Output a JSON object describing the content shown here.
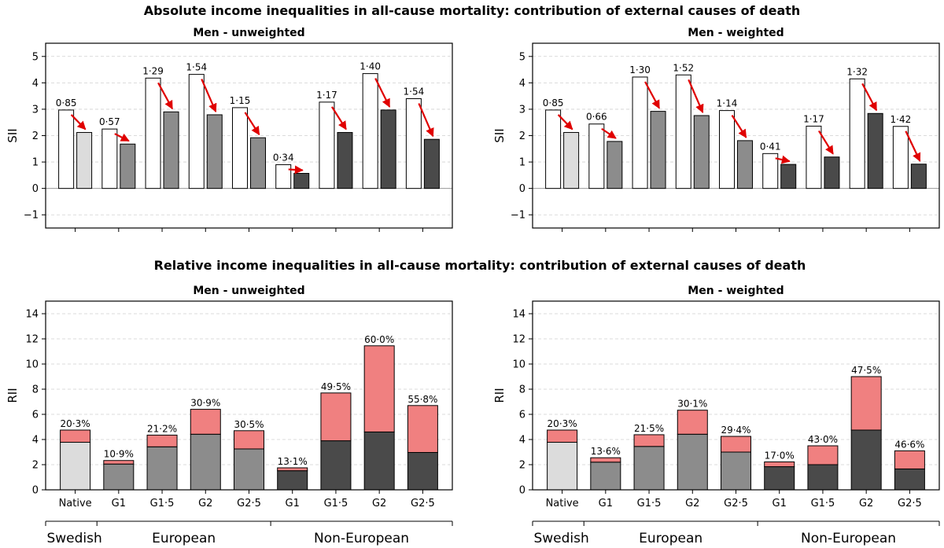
{
  "titles": {
    "top": "Absolute income inequalities in all-cause mortality: contribution of external causes of death",
    "bottom": "Relative income inequalities in all-cause mortality: contribution of external causes of death"
  },
  "categories": [
    "Native",
    "G1",
    "G1·5",
    "G2",
    "G2·5",
    "G1",
    "G1·5",
    "G2",
    "G2·5"
  ],
  "groups": [
    {
      "label": "Swedish",
      "start": 0,
      "end": 0
    },
    {
      "label": "European",
      "start": 1,
      "end": 4
    },
    {
      "label": "Non-European",
      "start": 5,
      "end": 8
    }
  ],
  "colors": {
    "native": "#dcdcdc",
    "european": "#8c8c8c",
    "non_european": "#4a4a4a",
    "external": "#f08080",
    "arrow": "#e00000",
    "open_bar": "#ffffff"
  },
  "chart_data": [
    {
      "type": "bar",
      "title": "Men - unweighted",
      "ylabel": "SII",
      "ylim": [
        -1.5,
        5.5
      ],
      "yticks": [
        "−1",
        "0",
        "1",
        "2",
        "3",
        "4",
        "5"
      ],
      "yticks_values": [
        -1,
        0,
        1,
        2,
        3,
        4,
        5
      ],
      "all_cause": [
        2.97,
        2.25,
        4.18,
        4.32,
        3.06,
        0.9,
        3.27,
        4.35,
        3.4
      ],
      "excl_external": [
        2.12,
        1.68,
        2.9,
        2.79,
        1.92,
        0.57,
        2.12,
        2.97,
        1.86
      ],
      "labels": [
        "0·85",
        "0·57",
        "1·29",
        "1·54",
        "1·15",
        "0·34",
        "1·17",
        "1·40",
        "1·54"
      ]
    },
    {
      "type": "bar",
      "title": "Men - weighted",
      "ylabel": "SII",
      "ylim": [
        -1.5,
        5.5
      ],
      "yticks": [
        "−1",
        "0",
        "1",
        "2",
        "3",
        "4",
        "5"
      ],
      "yticks_values": [
        -1,
        0,
        1,
        2,
        3,
        4,
        5
      ],
      "all_cause": [
        2.97,
        2.44,
        4.22,
        4.3,
        2.95,
        1.32,
        2.36,
        4.15,
        2.35
      ],
      "excl_external": [
        2.12,
        1.78,
        2.92,
        2.76,
        1.81,
        0.91,
        1.19,
        2.84,
        0.92
      ],
      "labels": [
        "0·85",
        "0·66",
        "1·30",
        "1·52",
        "1·14",
        "0·41",
        "1·17",
        "1·32",
        "1·42"
      ]
    },
    {
      "type": "bar",
      "title": "Men - unweighted",
      "ylabel": "RII",
      "ylim": [
        0,
        15
      ],
      "yticks": [
        "0",
        "2",
        "4",
        "6",
        "8",
        "10",
        "12",
        "14"
      ],
      "yticks_values": [
        0,
        2,
        4,
        6,
        8,
        10,
        12,
        14
      ],
      "total": [
        4.75,
        2.33,
        4.35,
        6.4,
        4.7,
        1.75,
        7.7,
        11.45,
        6.7
      ],
      "excl_external": [
        3.78,
        2.05,
        3.42,
        4.42,
        3.25,
        1.52,
        3.9,
        4.6,
        2.97
      ],
      "labels": [
        "20·3%",
        "10·9%",
        "21·2%",
        "30·9%",
        "30·5%",
        "13·1%",
        "49·5%",
        "60·0%",
        "55·8%"
      ]
    },
    {
      "type": "bar",
      "title": "Men - weighted",
      "ylabel": "RII",
      "ylim": [
        0,
        15
      ],
      "yticks": [
        "0",
        "2",
        "4",
        "6",
        "8",
        "10",
        "12",
        "14"
      ],
      "yticks_values": [
        0,
        2,
        4,
        6,
        8,
        10,
        12,
        14
      ],
      "total": [
        4.75,
        2.55,
        4.38,
        6.33,
        4.25,
        2.22,
        3.5,
        9.0,
        3.1
      ],
      "excl_external": [
        3.78,
        2.2,
        3.45,
        4.42,
        3.0,
        1.84,
        2.0,
        4.75,
        1.66
      ],
      "labels": [
        "20·3%",
        "13·6%",
        "21·5%",
        "30·1%",
        "29·4%",
        "17·0%",
        "43·0%",
        "47·5%",
        "46·6%"
      ]
    }
  ]
}
